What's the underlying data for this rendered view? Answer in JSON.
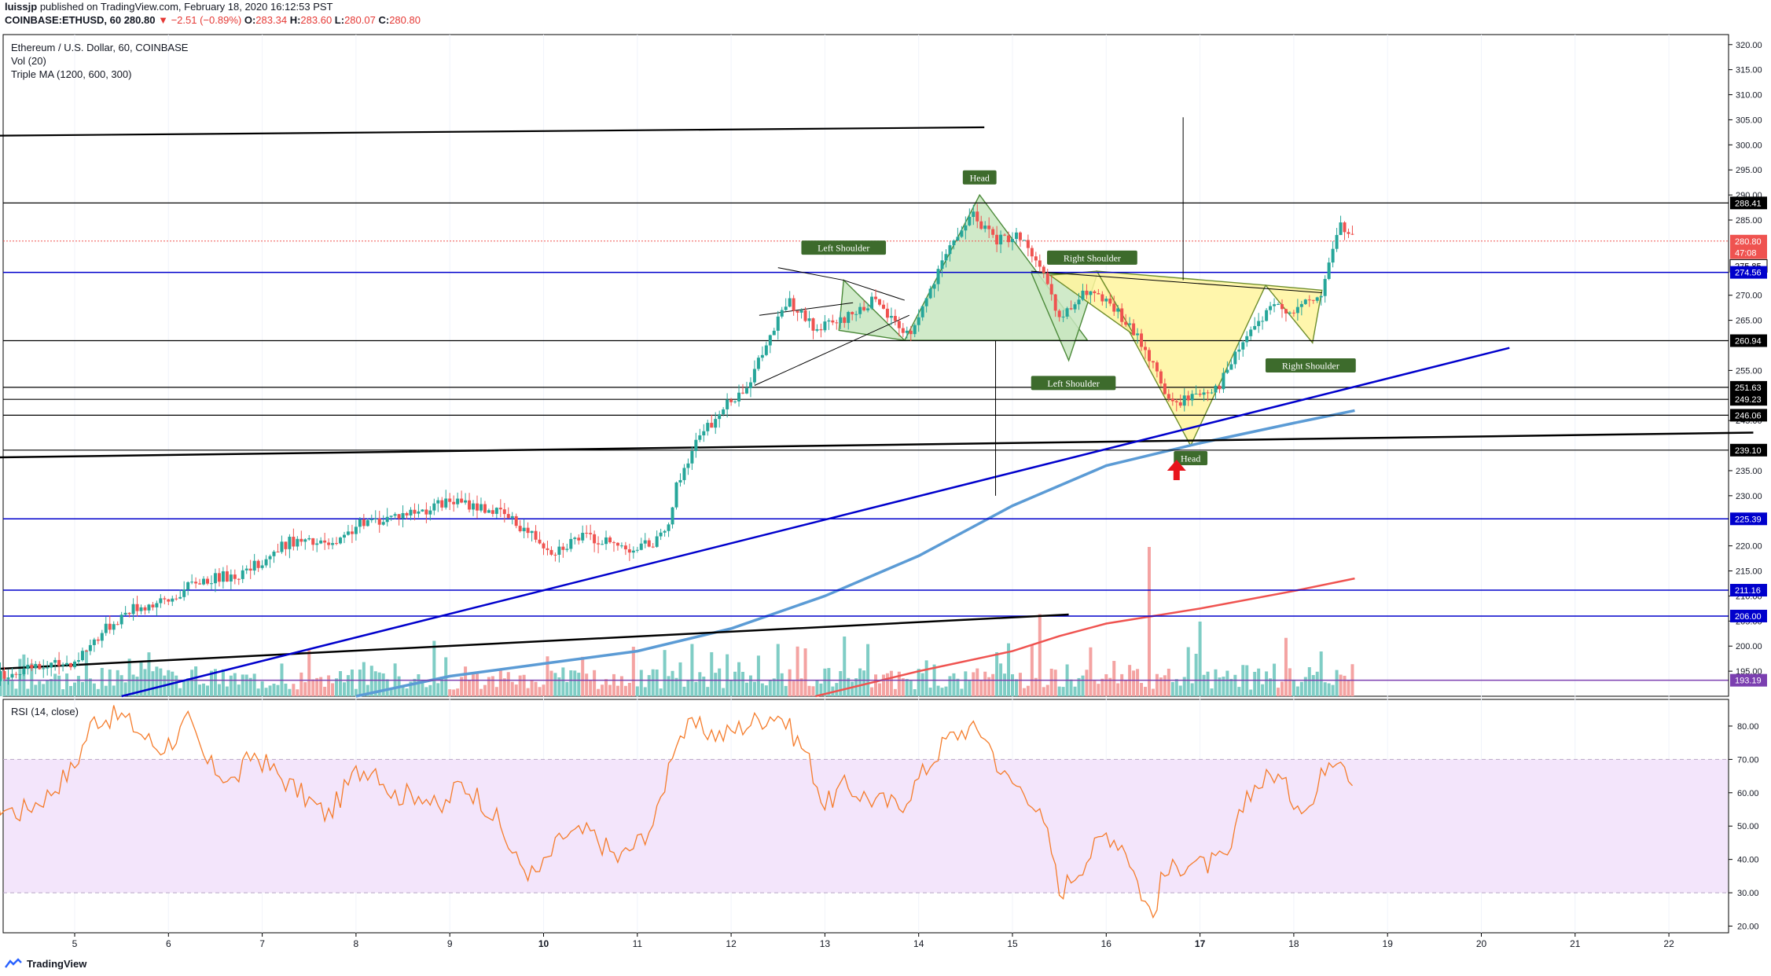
{
  "header": {
    "line1_user": "luissjp",
    "line1_text": "published on TradingView.com, February 18, 2020 16:12:53 PST",
    "symbol": "COINBASE:ETHUSD, 60",
    "last": "280.80",
    "change": "−2.51 (−0.89%)",
    "o_label": "O:",
    "o_val": "283.34",
    "h_label": "H:",
    "h_val": "283.60",
    "l_label": "L:",
    "l_val": "280.07",
    "c_label": "C:",
    "c_val": "280.80"
  },
  "legend": {
    "title": "Ethereum / U.S. Dollar, 60, COINBASE",
    "vol": "Vol (20)",
    "ma": "Triple MA (1200, 600, 300)",
    "rsi": "RSI (14, close)"
  },
  "footer": {
    "brand": "TradingView"
  },
  "colors": {
    "up": "#26a69a",
    "down": "#ef5350",
    "up_vol": "#7fcdc5",
    "down_vol": "#f4a3a2",
    "trend_blue": "#0000cc",
    "ma_light": "#5b9bd5",
    "ma_red": "#ef5350",
    "rsi_line": "#f57c2b",
    "rsi_band": "#f3e5fb",
    "green_pattern": "#c8e6c0",
    "yellow_pattern": "#fff59d",
    "label_bg": "#3d6b2c"
  },
  "chart_data": {
    "type": "candlestick",
    "title": "Ethereum / U.S. Dollar, 60, COINBASE",
    "price_axis": {
      "ylim": [
        190,
        322
      ],
      "ticks": [
        320,
        315,
        310,
        305,
        300,
        295,
        290,
        285,
        270,
        265,
        255,
        245,
        235,
        230,
        220,
        215,
        210,
        205,
        200,
        195
      ]
    },
    "x_axis": {
      "ticks": [
        "5",
        "6",
        "7",
        "8",
        "9",
        "10",
        "11",
        "12",
        "13",
        "14",
        "15",
        "16",
        "17",
        "18",
        "19",
        "20",
        "21",
        "22"
      ],
      "bold_ticks": [
        "10",
        "17"
      ],
      "first_day": 5
    },
    "price_path": [
      [
        4.0,
        193.5
      ],
      [
        5.0,
        197
      ],
      [
        5.3,
        203
      ],
      [
        5.6,
        207.5
      ],
      [
        6.0,
        209
      ],
      [
        6.3,
        213
      ],
      [
        6.8,
        214.5
      ],
      [
        7.0,
        217
      ],
      [
        7.3,
        221
      ],
      [
        7.8,
        220
      ],
      [
        8.0,
        224
      ],
      [
        8.4,
        226
      ],
      [
        8.8,
        227.5
      ],
      [
        9.0,
        229
      ],
      [
        9.4,
        227.5
      ],
      [
        9.6,
        226
      ],
      [
        9.9,
        222
      ],
      [
        10.1,
        219
      ],
      [
        10.4,
        222
      ],
      [
        10.8,
        220
      ],
      [
        11.0,
        219.5
      ],
      [
        11.3,
        222
      ],
      [
        11.4,
        231
      ],
      [
        11.6,
        240
      ],
      [
        11.9,
        247
      ],
      [
        12.2,
        253
      ],
      [
        12.4,
        261
      ],
      [
        12.6,
        269
      ],
      [
        12.9,
        263
      ],
      [
        13.2,
        265
      ],
      [
        13.5,
        269
      ],
      [
        13.9,
        262
      ],
      [
        14.1,
        270
      ],
      [
        14.4,
        282
      ],
      [
        14.6,
        286
      ],
      [
        14.8,
        281
      ],
      [
        15.1,
        282
      ],
      [
        15.3,
        275
      ],
      [
        15.5,
        265
      ],
      [
        15.8,
        271
      ],
      [
        16.1,
        267
      ],
      [
        16.4,
        260
      ],
      [
        16.7,
        248
      ],
      [
        16.9,
        250
      ],
      [
        17.2,
        252
      ],
      [
        17.5,
        262
      ],
      [
        17.8,
        268
      ],
      [
        18.0,
        267
      ],
      [
        18.3,
        270
      ],
      [
        18.4,
        279
      ],
      [
        18.5,
        284
      ],
      [
        18.65,
        281
      ]
    ],
    "vol_spikes": [
      [
        15.3,
        0.9
      ],
      [
        16.45,
        1.0
      ],
      [
        15.28,
        0.55
      ],
      [
        17.0,
        0.5
      ],
      [
        13.2,
        0.4
      ],
      [
        11.6,
        0.35
      ],
      [
        12.5,
        0.35
      ],
      [
        18.3,
        0.3
      ]
    ],
    "price_labels": [
      {
        "value": 288.41,
        "text": "288.41",
        "bg": "#000000"
      },
      {
        "value": 280.8,
        "text": "280.80",
        "bg": "#ef5350"
      },
      {
        "value": 278.5,
        "text": "47:08",
        "bg": "#ef5350"
      },
      {
        "value": 275.85,
        "text": "275.85",
        "bg": "#ffffff",
        "fg": "#000000"
      },
      {
        "value": 274.56,
        "text": "274.56",
        "bg": "#0000cc"
      },
      {
        "value": 260.94,
        "text": "260.94",
        "bg": "#000000"
      },
      {
        "value": 251.63,
        "text": "251.63",
        "bg": "#000000"
      },
      {
        "value": 249.23,
        "text": "249.23",
        "bg": "#000000"
      },
      {
        "value": 246.06,
        "text": "246.06",
        "bg": "#000000"
      },
      {
        "value": 239.1,
        "text": "239.10",
        "bg": "#000000"
      },
      {
        "value": 225.39,
        "text": "225.39",
        "bg": "#0000cc"
      },
      {
        "value": 211.16,
        "text": "211.16",
        "bg": "#0000cc"
      },
      {
        "value": 206.0,
        "text": "206.00",
        "bg": "#0000cc"
      },
      {
        "value": 193.19,
        "text": "193.19",
        "bg": "#7b3fb0"
      }
    ],
    "hlines": [
      {
        "value": 288.41,
        "color": "#000000",
        "width": 1.2
      },
      {
        "value": 274.56,
        "color": "#0000cc",
        "width": 1.5
      },
      {
        "value": 260.94,
        "color": "#000000",
        "width": 1.2
      },
      {
        "value": 251.63,
        "color": "#000000",
        "width": 1.2
      },
      {
        "value": 249.23,
        "color": "#000000",
        "width": 1.2
      },
      {
        "value": 246.06,
        "color": "#000000",
        "width": 1.2
      },
      {
        "value": 239.1,
        "color": "#000000",
        "width": 1.2
      },
      {
        "value": 225.39,
        "color": "#0000cc",
        "width": 1.5
      },
      {
        "value": 211.16,
        "color": "#0000cc",
        "width": 1.5
      },
      {
        "value": 206.0,
        "color": "#0000cc",
        "width": 1.5
      },
      {
        "value": 193.19,
        "color": "#7b3fb0",
        "width": 1.5
      },
      {
        "value": 280.8,
        "color": "#ef5350",
        "width": 1,
        "dash": "2,2"
      }
    ],
    "trendlines": [
      {
        "p1": [
          4.0,
          301.8
        ],
        "p2": [
          14.7,
          303.5
        ],
        "color": "#000000",
        "width": 2.2
      },
      {
        "p1": [
          4.0,
          237.6
        ],
        "p2": [
          22.9,
          242.6
        ],
        "color": "#000000",
        "width": 2.5
      },
      {
        "p1": [
          4.0,
          195.3
        ],
        "p2": [
          15.6,
          206.3
        ],
        "color": "#000000",
        "width": 2.5
      },
      {
        "p1": [
          5.5,
          190
        ],
        "p2": [
          20.3,
          259.5
        ],
        "color": "#0000cc",
        "width": 2.5
      },
      {
        "p1": [
          12.25,
          252
        ],
        "p2": [
          13.9,
          266
        ],
        "color": "#000000",
        "width": 1
      },
      {
        "p1": [
          12.3,
          266
        ],
        "p2": [
          13.3,
          268.5
        ],
        "color": "#000000",
        "width": 1
      },
      {
        "p1": [
          12.5,
          275.5
        ],
        "p2": [
          13.2,
          273
        ],
        "color": "#000000",
        "width": 1
      },
      {
        "p1": [
          13.2,
          273
        ],
        "p2": [
          13.85,
          269
        ],
        "color": "#000000",
        "width": 1
      },
      {
        "p1": [
          15.2,
          274.8
        ],
        "p2": [
          18.3,
          270.5
        ],
        "color": "#000000",
        "width": 1
      },
      {
        "p1": [
          16.82,
          305.5
        ],
        "p2": [
          16.82,
          273
        ],
        "color": "#000000",
        "width": 1
      },
      {
        "p1": [
          14.82,
          261
        ],
        "p2": [
          14.82,
          230
        ],
        "color": "#000000",
        "width": 1
      }
    ],
    "ma_light": [
      [
        8.0,
        190
      ],
      [
        9.0,
        194
      ],
      [
        10.0,
        196.5
      ],
      [
        11.0,
        199
      ],
      [
        12.0,
        203.5
      ],
      [
        13.0,
        210
      ],
      [
        14.0,
        218
      ],
      [
        15.0,
        228
      ],
      [
        16.0,
        236
      ],
      [
        17.0,
        240.5
      ],
      [
        18.0,
        244.5
      ],
      [
        18.65,
        247
      ]
    ],
    "ma_red": [
      [
        12.9,
        190
      ],
      [
        14.0,
        195
      ],
      [
        15.0,
        199
      ],
      [
        15.5,
        202
      ],
      [
        16.0,
        204.5
      ],
      [
        17.0,
        207.5
      ],
      [
        18.0,
        211
      ],
      [
        18.65,
        213.5
      ]
    ],
    "pattern_green": [
      [
        [
          13.85,
          261
        ],
        [
          14.65,
          290
        ],
        [
          15.8,
          261
        ]
      ],
      [
        [
          13.15,
          263
        ],
        [
          13.2,
          273
        ],
        [
          13.85,
          261
        ]
      ],
      [
        [
          15.2,
          274.5
        ],
        [
          15.6,
          257
        ],
        [
          15.9,
          274
        ]
      ]
    ],
    "pattern_yellow": [
      [
        [
          15.9,
          274.8
        ],
        [
          16.9,
          240
        ],
        [
          17.7,
          272
        ]
      ],
      [
        [
          15.9,
          274.8
        ],
        [
          16.3,
          262
        ],
        [
          15.4,
          274
        ]
      ],
      [
        [
          17.7,
          272
        ],
        [
          18.2,
          260.5
        ],
        [
          18.3,
          271
        ]
      ]
    ],
    "annotations": [
      {
        "text": "Head",
        "day": 14.65,
        "value": 293.5
      },
      {
        "text": "Left Shoulder",
        "day": 13.2,
        "value": 279.5
      },
      {
        "text": "Right Shoulder",
        "day": 15.85,
        "value": 277.5
      },
      {
        "text": "Left Shoulder",
        "day": 15.65,
        "value": 252.5
      },
      {
        "text": "Head",
        "day": 16.9,
        "value": 237.5
      },
      {
        "text": "Right Shoulder",
        "day": 18.18,
        "value": 256
      }
    ],
    "arrow": {
      "day": 16.75,
      "value": 235
    },
    "rsi": {
      "ylim": [
        18,
        88
      ],
      "ticks": [
        80,
        70,
        60,
        50,
        40,
        30,
        20
      ],
      "upper_band": 70,
      "lower_band": 30,
      "path": [
        [
          4.0,
          58
        ],
        [
          4.4,
          54
        ],
        [
          4.7,
          59
        ],
        [
          5.0,
          68
        ],
        [
          5.2,
          82
        ],
        [
          5.5,
          83
        ],
        [
          5.7,
          78
        ],
        [
          5.9,
          73
        ],
        [
          6.1,
          77
        ],
        [
          6.2,
          82
        ],
        [
          6.4,
          69
        ],
        [
          6.7,
          63
        ],
        [
          6.9,
          72
        ],
        [
          7.1,
          67
        ],
        [
          7.4,
          60
        ],
        [
          7.7,
          53
        ],
        [
          8.0,
          66
        ],
        [
          8.2,
          68
        ],
        [
          8.4,
          59
        ],
        [
          8.7,
          60
        ],
        [
          8.9,
          54
        ],
        [
          9.1,
          63
        ],
        [
          9.3,
          59
        ],
        [
          9.5,
          52
        ],
        [
          9.7,
          40
        ],
        [
          9.9,
          35
        ],
        [
          10.0,
          38
        ],
        [
          10.2,
          47
        ],
        [
          10.5,
          48
        ],
        [
          10.8,
          40
        ],
        [
          11.0,
          45
        ],
        [
          11.2,
          52
        ],
        [
          11.4,
          76
        ],
        [
          11.6,
          80
        ],
        [
          11.9,
          77
        ],
        [
          12.2,
          81
        ],
        [
          12.5,
          84
        ],
        [
          12.8,
          72
        ],
        [
          13.0,
          56
        ],
        [
          13.2,
          62
        ],
        [
          13.5,
          58
        ],
        [
          13.8,
          56
        ],
        [
          14.0,
          64
        ],
        [
          14.3,
          76
        ],
        [
          14.5,
          79
        ],
        [
          14.7,
          78
        ],
        [
          14.9,
          65
        ],
        [
          15.2,
          59
        ],
        [
          15.4,
          45
        ],
        [
          15.5,
          30
        ],
        [
          15.7,
          37
        ],
        [
          16.0,
          48
        ],
        [
          16.2,
          44
        ],
        [
          16.4,
          28
        ],
        [
          16.5,
          23
        ],
        [
          16.6,
          35
        ],
        [
          16.9,
          40
        ],
        [
          17.0,
          38
        ],
        [
          17.3,
          40
        ],
        [
          17.5,
          60
        ],
        [
          17.8,
          66
        ],
        [
          18.0,
          58
        ],
        [
          18.2,
          56
        ],
        [
          18.35,
          70
        ],
        [
          18.5,
          72
        ],
        [
          18.65,
          62
        ]
      ]
    }
  }
}
